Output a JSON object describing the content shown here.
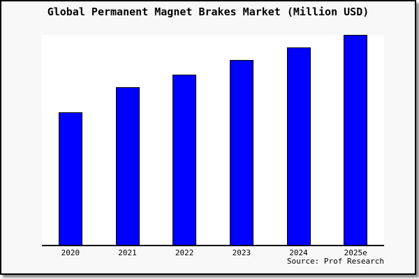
{
  "window": {
    "background_color": "#f8f8f8",
    "border_color": "#000000",
    "plot_background": "#ffffff"
  },
  "header": {
    "title": "Global Permanent Magnet Brakes Market (Million USD)"
  },
  "footer": {
    "source": "Source: Prof Research"
  },
  "chart_data": {
    "type": "bar",
    "title": "Global Permanent Magnet Brakes Market (Million USD)",
    "categories": [
      "2020",
      "2021",
      "2022",
      "2023",
      "2024",
      "2025e"
    ],
    "values": [
      63,
      75,
      81,
      88,
      94,
      100
    ],
    "xlabel": "",
    "ylabel": "",
    "ylim": [
      0,
      100
    ],
    "y_axis_visible": false,
    "grid": false,
    "legend": false,
    "bar_color": "#0000ff",
    "bar_edge_color": "#000000",
    "source_note": "Source: Prof Research"
  }
}
